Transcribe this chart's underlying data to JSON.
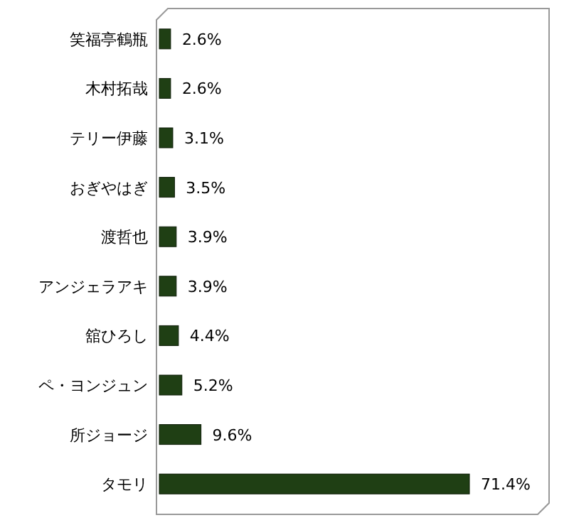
{
  "chart_data": {
    "type": "bar",
    "orientation": "horizontal",
    "categories": [
      "笑福亭鶴瓶",
      "木村拓哉",
      "テリー伊藤",
      "おぎやはぎ",
      "渡哲也",
      "アンジェラアキ",
      "舘ひろし",
      "ペ・ヨンジュン",
      "所ジョージ",
      "タモリ"
    ],
    "values": [
      2.6,
      2.6,
      3.1,
      3.5,
      3.9,
      3.9,
      4.4,
      5.2,
      9.6,
      71.4
    ],
    "value_labels": [
      "2.6%",
      "2.6%",
      "3.1%",
      "3.5%",
      "3.9%",
      "3.9%",
      "4.4%",
      "5.2%",
      "9.6%",
      "71.4%"
    ],
    "color": "#1f3f14"
  }
}
